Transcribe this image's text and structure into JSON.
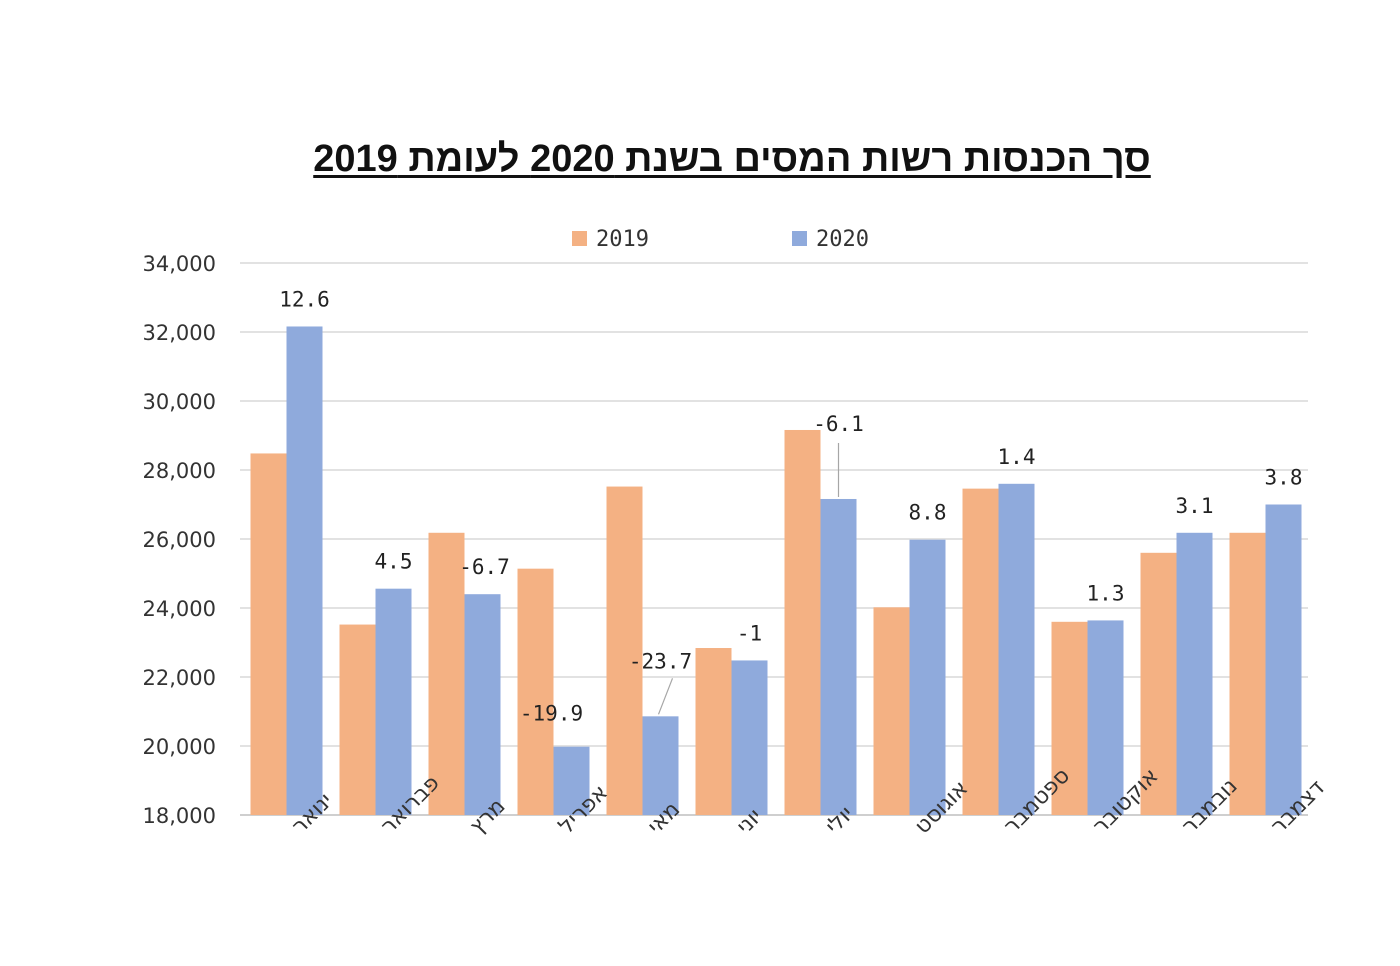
{
  "chart_data": {
    "type": "bar",
    "title": "סך הכנסות רשות המסים בשנת 2020 לעומת 2019",
    "categories": [
      "ינואר",
      "פברואר",
      "מרץ",
      "אפריל",
      "מאי",
      "יוני",
      "יולי",
      "אוגוסט",
      "ספטמבר",
      "אוקטובר",
      "נובמבר",
      "דצמבר"
    ],
    "series": [
      {
        "name": "2019",
        "color": "#f4b183",
        "values": [
          28480,
          23520,
          26180,
          25140,
          27520,
          22840,
          29160,
          24020,
          27460,
          23600,
          25600,
          26180
        ]
      },
      {
        "name": "2020",
        "color": "#8faadc",
        "values": [
          32160,
          24560,
          24400,
          19980,
          20860,
          22480,
          27160,
          25980,
          27600,
          23640,
          26180,
          27000
        ]
      }
    ],
    "data_labels": [
      "12.6",
      "4.5",
      "-6.7",
      "-19.9",
      "-23.7",
      "-1",
      "-6.1",
      "8.8",
      "1.4",
      "1.3",
      "3.1",
      "3.8"
    ],
    "ylim": [
      18000,
      34000
    ],
    "yticks": [
      "18,000",
      "20,000",
      "22,000",
      "24,000",
      "26,000",
      "28,000",
      "30,000",
      "32,000",
      "34,000"
    ],
    "grid": true,
    "legend_position": "top"
  }
}
